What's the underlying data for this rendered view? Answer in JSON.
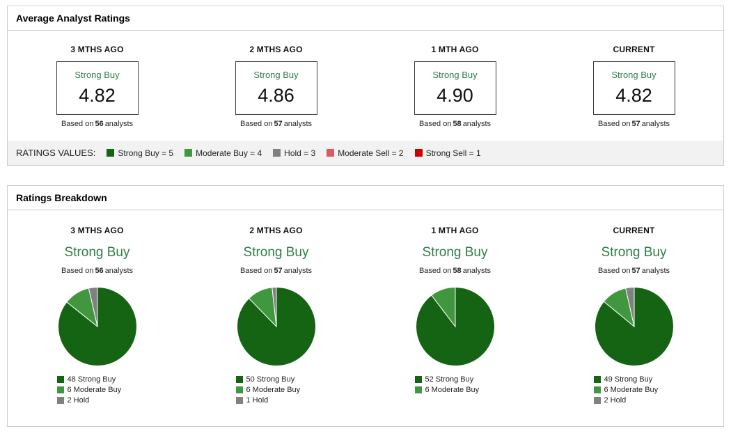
{
  "colors": {
    "strong_buy": "#146414",
    "moderate_buy": "#41973f",
    "hold": "#808080",
    "moderate_sell": "#df5862",
    "strong_sell": "#cc0000",
    "rating_text_green": "#2e7d46"
  },
  "average_panel": {
    "title": "Average Analyst Ratings",
    "columns": [
      {
        "period": "3 MTHS AGO",
        "rating": "Strong Buy",
        "value": "4.82",
        "based_on": "Based on",
        "analysts": "56",
        "analysts_suffix": "analysts"
      },
      {
        "period": "2 MTHS AGO",
        "rating": "Strong Buy",
        "value": "4.86",
        "based_on": "Based on",
        "analysts": "57",
        "analysts_suffix": "analysts"
      },
      {
        "period": "1 MTH AGO",
        "rating": "Strong Buy",
        "value": "4.90",
        "based_on": "Based on",
        "analysts": "58",
        "analysts_suffix": "analysts"
      },
      {
        "period": "CURRENT",
        "rating": "Strong Buy",
        "value": "4.82",
        "based_on": "Based on",
        "analysts": "57",
        "analysts_suffix": "analysts"
      }
    ],
    "legend_label": "RATINGS VALUES:",
    "legend_items": [
      {
        "label": "Strong Buy = 5",
        "color": "#146414"
      },
      {
        "label": "Moderate Buy = 4",
        "color": "#41973f"
      },
      {
        "label": "Hold = 3",
        "color": "#808080"
      },
      {
        "label": "Moderate Sell = 2",
        "color": "#df5862"
      },
      {
        "label": "Strong Sell = 1",
        "color": "#cc0000"
      }
    ]
  },
  "breakdown_panel": {
    "title": "Ratings Breakdown",
    "columns": [
      {
        "period": "3 MTHS AGO",
        "rating": "Strong Buy",
        "based_on": "Based on",
        "analysts": "56",
        "analysts_suffix": "analysts",
        "slices": [
          {
            "label": "48 Strong Buy",
            "value": 48,
            "color": "#146414"
          },
          {
            "label": "6 Moderate Buy",
            "value": 6,
            "color": "#41973f"
          },
          {
            "label": "2 Hold",
            "value": 2,
            "color": "#808080"
          }
        ]
      },
      {
        "period": "2 MTHS AGO",
        "rating": "Strong Buy",
        "based_on": "Based on",
        "analysts": "57",
        "analysts_suffix": "analysts",
        "slices": [
          {
            "label": "50 Strong Buy",
            "value": 50,
            "color": "#146414"
          },
          {
            "label": "6 Moderate Buy",
            "value": 6,
            "color": "#41973f"
          },
          {
            "label": "1 Hold",
            "value": 1,
            "color": "#808080"
          }
        ]
      },
      {
        "period": "1 MTH AGO",
        "rating": "Strong Buy",
        "based_on": "Based on",
        "analysts": "58",
        "analysts_suffix": "analysts",
        "slices": [
          {
            "label": "52 Strong Buy",
            "value": 52,
            "color": "#146414"
          },
          {
            "label": "6 Moderate Buy",
            "value": 6,
            "color": "#41973f"
          }
        ]
      },
      {
        "period": "CURRENT",
        "rating": "Strong Buy",
        "based_on": "Based on",
        "analysts": "57",
        "analysts_suffix": "analysts",
        "slices": [
          {
            "label": "49 Strong Buy",
            "value": 49,
            "color": "#146414"
          },
          {
            "label": "6 Moderate Buy",
            "value": 6,
            "color": "#41973f"
          },
          {
            "label": "2 Hold",
            "value": 2,
            "color": "#808080"
          }
        ]
      }
    ]
  },
  "chart_data": [
    {
      "type": "table",
      "title": "Average Analyst Ratings",
      "categories": [
        "3 MTHS AGO",
        "2 MTHS AGO",
        "1 MTH AGO",
        "CURRENT"
      ],
      "values": [
        4.82,
        4.86,
        4.9,
        4.82
      ],
      "analysts": [
        56,
        57,
        58,
        57
      ],
      "rating_labels": [
        "Strong Buy",
        "Strong Buy",
        "Strong Buy",
        "Strong Buy"
      ],
      "scale": "Strong Buy = 5, Moderate Buy = 4, Hold = 3, Moderate Sell = 2, Strong Sell = 1",
      "ylim": [
        1,
        5
      ]
    },
    {
      "type": "pie",
      "title": "3 MTHS AGO",
      "subtitle": "Strong Buy",
      "total": 56,
      "labels": [
        "Strong Buy",
        "Moderate Buy",
        "Hold"
      ],
      "values": [
        48,
        6,
        2
      ],
      "colors": [
        "#146414",
        "#41973f",
        "#808080"
      ],
      "legend_position": "bottom"
    },
    {
      "type": "pie",
      "title": "2 MTHS AGO",
      "subtitle": "Strong Buy",
      "total": 57,
      "labels": [
        "Strong Buy",
        "Moderate Buy",
        "Hold"
      ],
      "values": [
        50,
        6,
        1
      ],
      "colors": [
        "#146414",
        "#41973f",
        "#808080"
      ],
      "legend_position": "bottom"
    },
    {
      "type": "pie",
      "title": "1 MTH AGO",
      "subtitle": "Strong Buy",
      "total": 58,
      "labels": [
        "Strong Buy",
        "Moderate Buy"
      ],
      "values": [
        52,
        6
      ],
      "colors": [
        "#146414",
        "#41973f"
      ],
      "legend_position": "bottom"
    },
    {
      "type": "pie",
      "title": "CURRENT",
      "subtitle": "Strong Buy",
      "total": 57,
      "labels": [
        "Strong Buy",
        "Moderate Buy",
        "Hold"
      ],
      "values": [
        49,
        6,
        2
      ],
      "colors": [
        "#146414",
        "#41973f",
        "#808080"
      ],
      "legend_position": "bottom"
    }
  ]
}
